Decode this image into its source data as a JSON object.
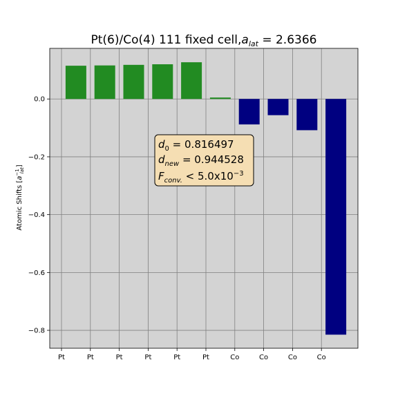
{
  "chart_data": {
    "type": "bar",
    "title": "Pt(6)/Co(4) 111 fixed cell,",
    "title_math": {
      "base": "a",
      "sub": "lat",
      "rest": " = 2.6366"
    },
    "ylabel": {
      "text": "Atomic Shifts [",
      "base": "a",
      "sub": "lat",
      "sup": "−1",
      "close": "]"
    },
    "categories": [
      "Pt",
      "Pt",
      "Pt",
      "Pt",
      "Pt",
      "Pt",
      "Co",
      "Co",
      "Co",
      "Co"
    ],
    "values": [
      0.115,
      0.116,
      0.118,
      0.12,
      0.127,
      0.005,
      -0.088,
      -0.056,
      -0.108,
      -0.815
    ],
    "colors": [
      "#228b22",
      "#228b22",
      "#228b22",
      "#228b22",
      "#228b22",
      "#228b22",
      "#000080",
      "#000080",
      "#000080",
      "#000080"
    ],
    "ylim": [
      -0.862,
      0.175
    ],
    "yticks": [
      0.0,
      -0.2,
      -0.4,
      -0.6,
      -0.8
    ],
    "ytick_labels": [
      "0.0",
      "−0.2",
      "−0.4",
      "−0.6",
      "−0.8"
    ],
    "grid": true,
    "background": "#d3d3d3",
    "annotation": {
      "position": "center",
      "line1": {
        "base": "d",
        "sub": "0",
        "rest": " = 0.816497"
      },
      "line2": {
        "base": "d",
        "sub": "new",
        "rest": " = 0.944528"
      },
      "line3": {
        "base": "F",
        "sub": "conv.",
        "rest": " < 5.0x10",
        "sup": "−3"
      },
      "facecolor": "#f5deb3"
    }
  }
}
